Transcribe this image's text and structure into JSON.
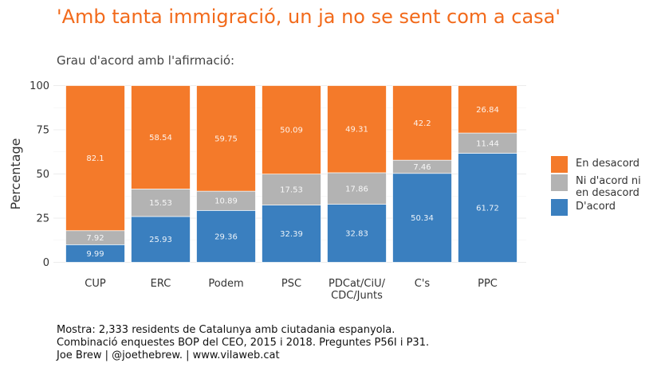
{
  "chart_data": {
    "type": "bar",
    "stacked": true,
    "title": "'Amb tanta immigració, un ja no se sent com a casa'",
    "subtitle": "Grau d'acord amb l'afirmació:",
    "xlabel": "",
    "ylabel": "Percentage",
    "ylim": [
      0,
      100
    ],
    "yticks": [
      0,
      25,
      50,
      75,
      100
    ],
    "grid": true,
    "legend_position": "right",
    "categories": [
      "CUP",
      "ERC",
      "Podem",
      "PSC",
      "PDCat/CiU/\nCDC/Junts",
      "C's",
      "PPC"
    ],
    "series": [
      {
        "name": "D'acord",
        "color": "#3a7fbf",
        "values": [
          9.99,
          25.93,
          29.36,
          32.39,
          32.83,
          50.34,
          61.72
        ]
      },
      {
        "name": "Ni d'acord ni en desacord",
        "color": "#b3b3b3",
        "values": [
          7.92,
          15.53,
          10.89,
          17.53,
          17.86,
          7.46,
          11.44
        ]
      },
      {
        "name": "En desacord",
        "color": "#f47a2a",
        "values": [
          82.1,
          58.54,
          59.75,
          50.09,
          49.31,
          42.2,
          26.84
        ]
      }
    ]
  },
  "legend": {
    "items": [
      {
        "label": "En desacord",
        "color": "#f47a2a"
      },
      {
        "label": "Ni d'acord ni\nen desacord",
        "color": "#b3b3b3"
      },
      {
        "label": "D'acord",
        "color": "#3a7fbf"
      }
    ]
  },
  "caption": {
    "line1": "Mostra: 2,333 residents de Catalunya amb ciutadania espanyola.",
    "line2": "Combinació enquestes BOP del CEO, 2015 i 2018. Preguntes P56I i P31.",
    "line3": "Joe Brew | @joethebrew. | www.vilaweb.cat"
  }
}
